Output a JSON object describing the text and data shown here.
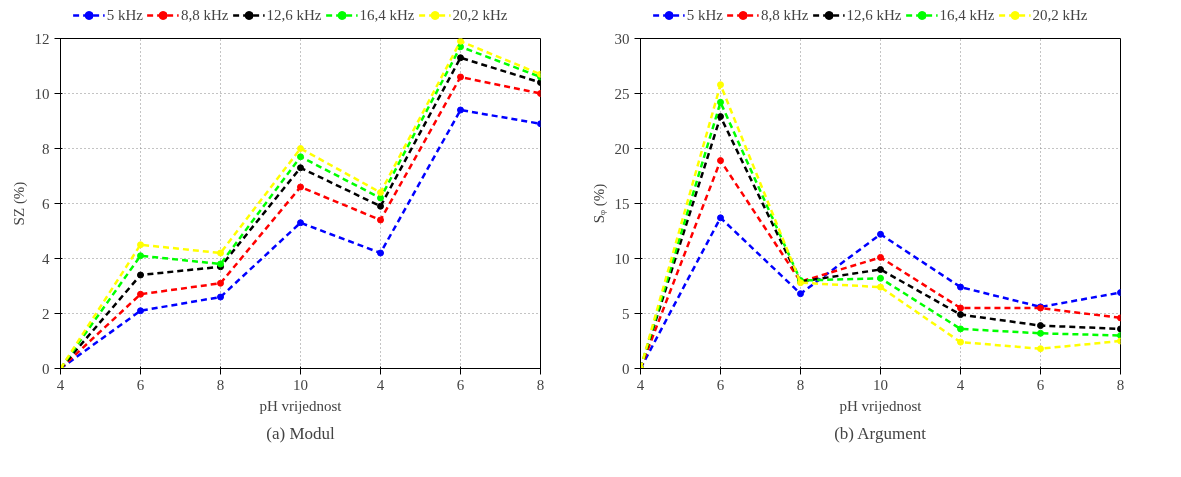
{
  "chart_data": [
    {
      "type": "line",
      "title": "(a) Modul",
      "xlabel": "pH vrijednost",
      "ylabel": "SZ (%)",
      "categories": [
        "4",
        "6",
        "8",
        "10",
        "4",
        "6",
        "8"
      ],
      "ylim": [
        0,
        12
      ],
      "yticks": [
        0,
        2,
        4,
        6,
        8,
        10,
        12
      ],
      "grid": true,
      "legend": "top",
      "marker": "circle",
      "line_style": "dashed",
      "series": [
        {
          "name": "5 kHz",
          "color": "#0000ff",
          "values": [
            0,
            2.1,
            2.6,
            5.3,
            4.2,
            9.4,
            8.9
          ]
        },
        {
          "name": "8,8 kHz",
          "color": "#ff0000",
          "values": [
            0,
            2.7,
            3.1,
            6.6,
            5.4,
            10.6,
            10
          ]
        },
        {
          "name": "12,6 kHz",
          "color": "#000000",
          "values": [
            0,
            3.4,
            3.7,
            7.3,
            5.9,
            11.3,
            10.4
          ]
        },
        {
          "name": "16,4 kHz",
          "color": "#00ff00",
          "values": [
            0,
            4.1,
            3.8,
            7.7,
            6.2,
            11.7,
            10.6
          ]
        },
        {
          "name": "20,2 kHz",
          "color": "#ffff00",
          "values": [
            0,
            4.5,
            4.2,
            8,
            6.4,
            11.9,
            10.7
          ]
        }
      ]
    },
    {
      "type": "line",
      "title": "(b) Argument",
      "xlabel": "pH vrijednost",
      "ylabel": "Sᵩ (%)",
      "categories": [
        "4",
        "6",
        "8",
        "10",
        "4",
        "6",
        "8"
      ],
      "ylim": [
        0,
        30
      ],
      "yticks": [
        0,
        5,
        10,
        15,
        20,
        25,
        30
      ],
      "grid": true,
      "legend": "top",
      "marker": "circle",
      "line_style": "dashed",
      "series": [
        {
          "name": "5 kHz",
          "color": "#0000ff",
          "values": [
            0,
            13.7,
            6.8,
            12.2,
            7.4,
            5.6,
            6.9
          ]
        },
        {
          "name": "8,8 kHz",
          "color": "#ff0000",
          "values": [
            0,
            18.9,
            7.9,
            10.1,
            5.5,
            5.5,
            4.6
          ]
        },
        {
          "name": "12,6 kHz",
          "color": "#000000",
          "values": [
            0,
            22.9,
            7.9,
            9.0,
            4.9,
            3.9,
            3.6
          ]
        },
        {
          "name": "16,4 kHz",
          "color": "#00ff00",
          "values": [
            0,
            24.2,
            8.0,
            8.2,
            3.6,
            3.2,
            3.0
          ]
        },
        {
          "name": "20,2 kHz",
          "color": "#ffff00",
          "values": [
            0,
            25.8,
            7.8,
            7.4,
            2.4,
            1.8,
            2.5
          ]
        }
      ]
    }
  ]
}
